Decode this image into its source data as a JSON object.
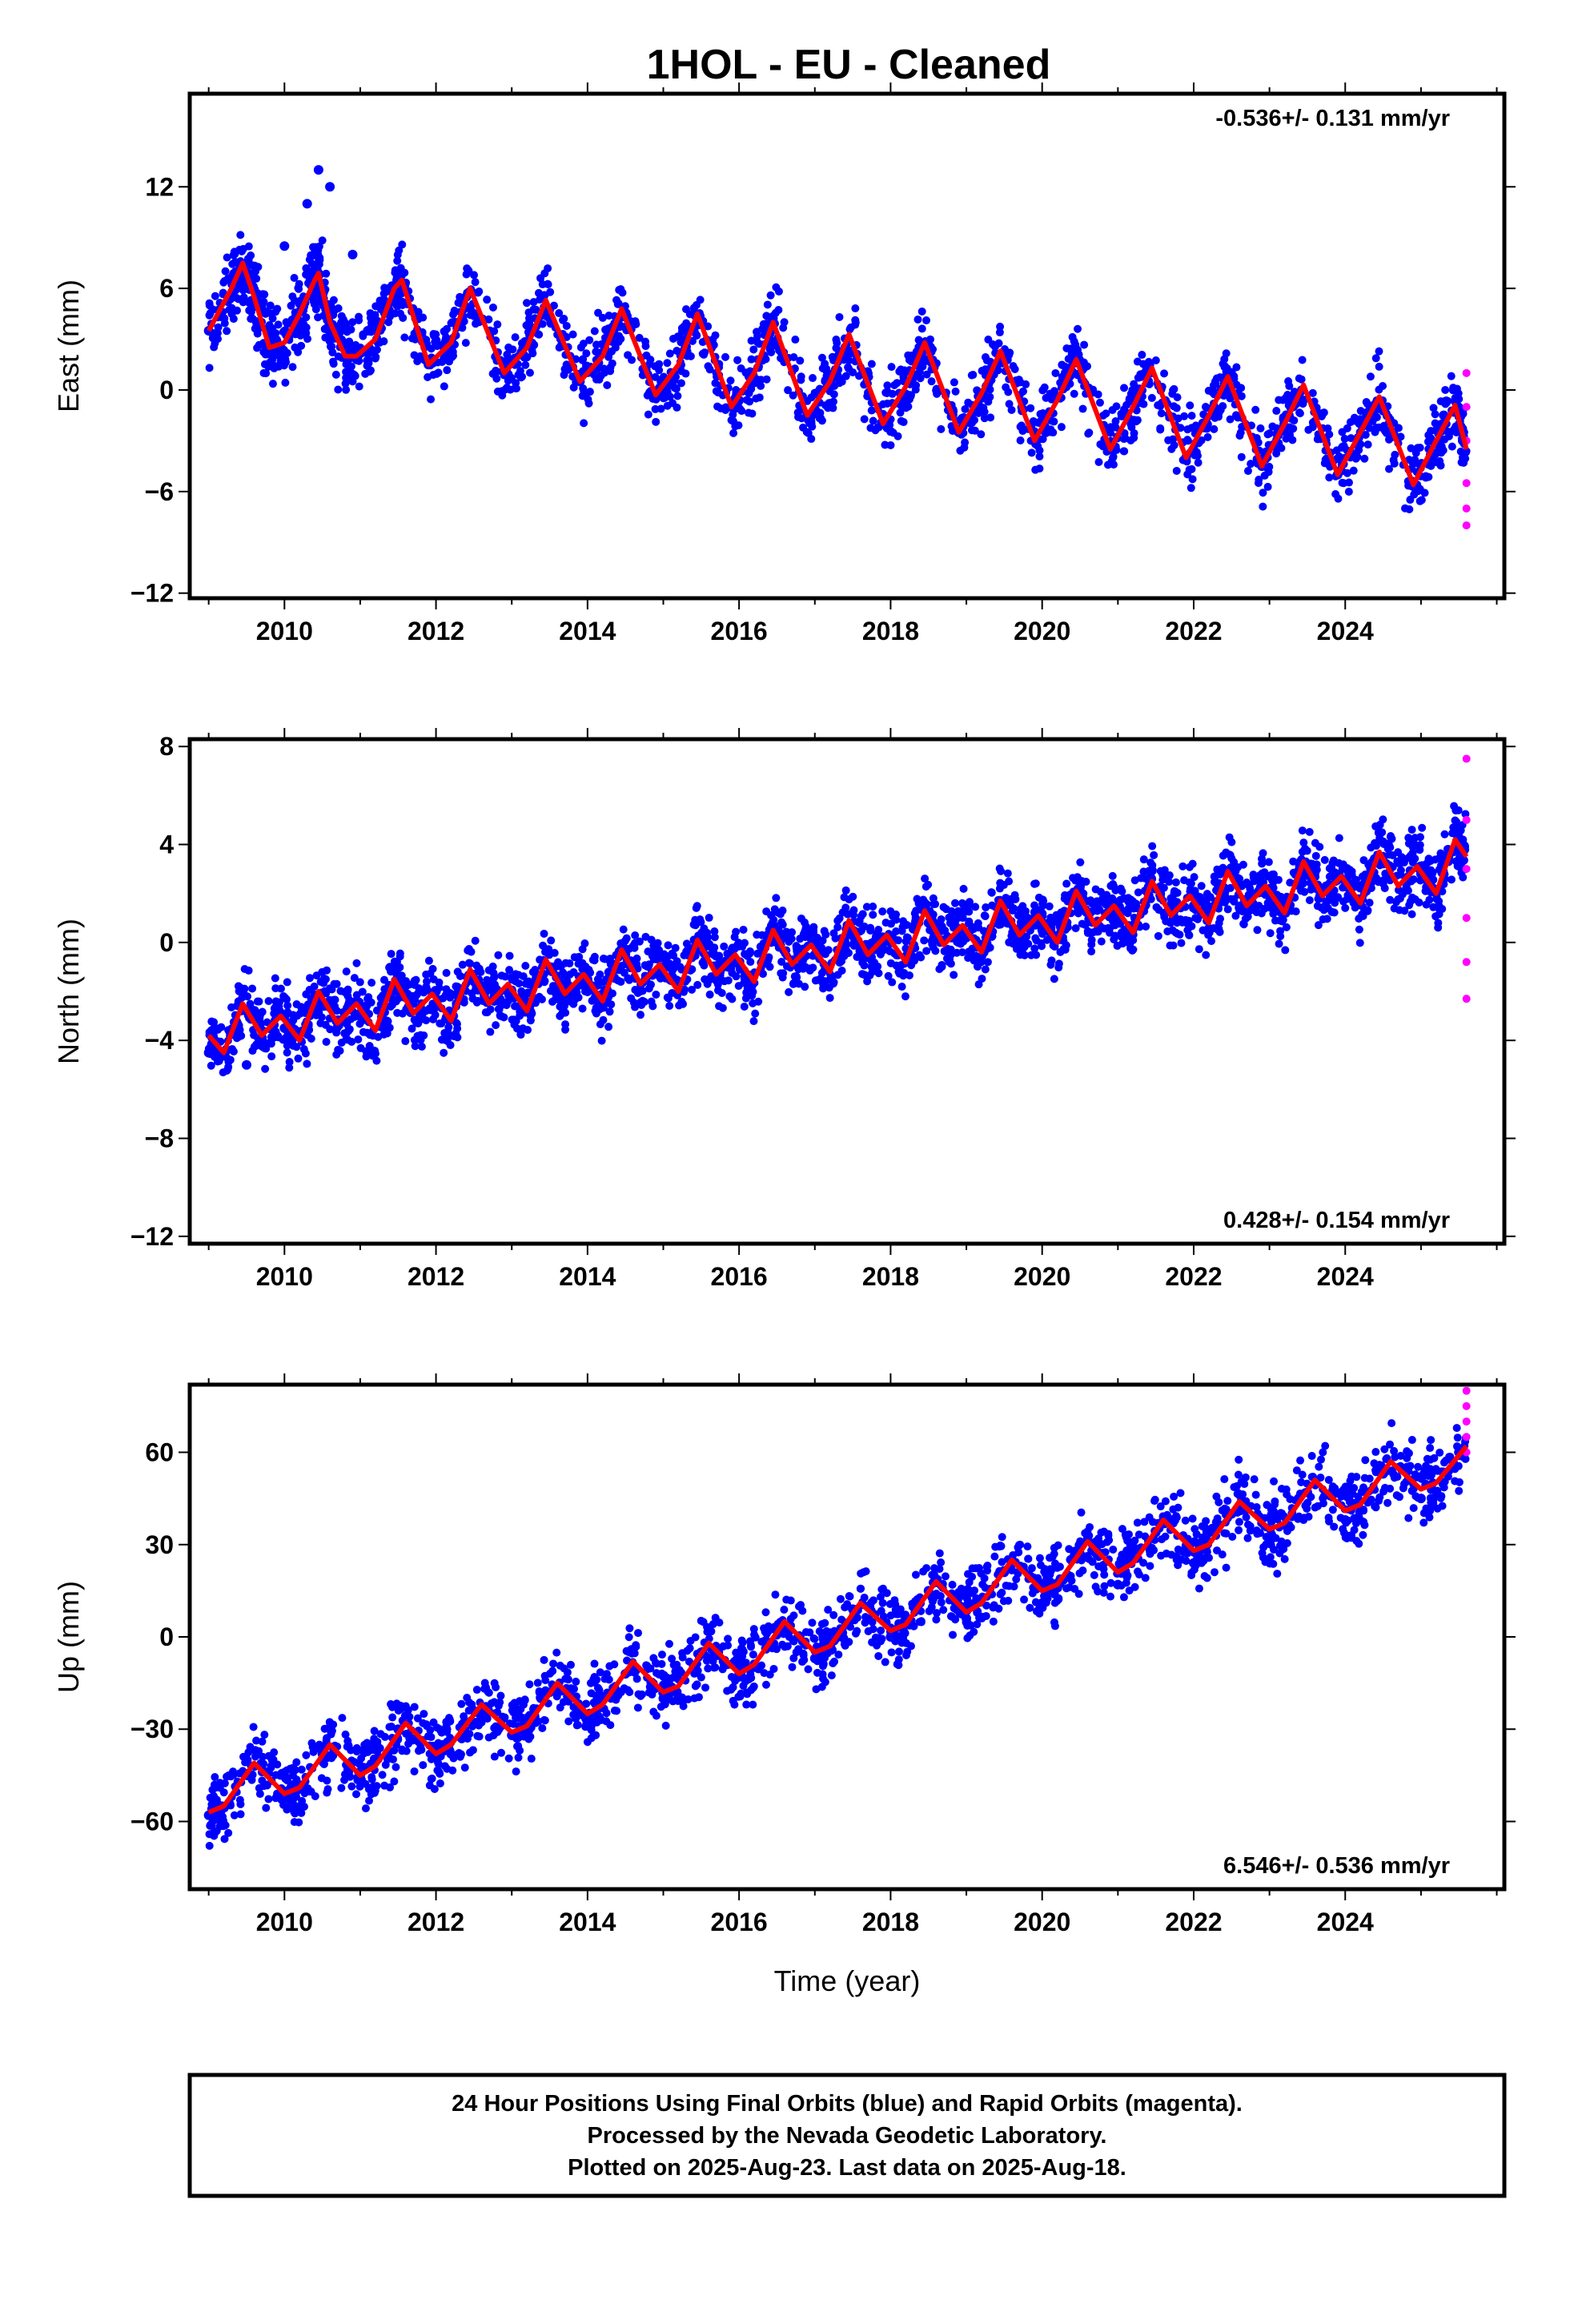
{
  "title": "1HOL  - EU - Cleaned",
  "footer": {
    "line1": "24 Hour Positions Using Final Orbits (blue) and Rapid Orbits (magenta).",
    "line2": "Processed by the Nevada Geodetic Laboratory.",
    "line3": "Plotted on 2025-Aug-23. Last data on 2025-Aug-18."
  },
  "colors": {
    "final_orbits": "#0000ff",
    "rapid_orbits": "#ff00ff",
    "model_fit": "#ff0000"
  },
  "chart_data": [
    {
      "type": "scatter",
      "ylabel": "East (mm)",
      "xlabel": "",
      "rate_label": "-0.536+/- 0.131 mm/yr",
      "rate_position": "top-right",
      "xlim": [
        2008.75,
        2026.1
      ],
      "ylim": [
        -12.3,
        17.5
      ],
      "yticks": [
        12,
        6,
        0,
        -6,
        -12
      ],
      "xticks": [
        2010,
        2012,
        2014,
        2016,
        2018,
        2020,
        2022,
        2024
      ],
      "series": [
        {
          "name": "Final Orbits",
          "x": [
            2009.0,
            2009.4,
            2009.8,
            2010.0,
            2010.3,
            2010.45,
            2010.6,
            2010.9,
            2011.1,
            2011.4,
            2011.9,
            2012.4,
            2012.9,
            2013.4,
            2013.9,
            2014.4,
            2014.9,
            2015.4,
            2015.9,
            2016.4,
            2016.9,
            2017.4,
            2017.9,
            2018.4,
            2018.9,
            2019.4,
            2019.9,
            2020.4,
            2020.9,
            2021.4,
            2021.9,
            2022.4,
            2022.9,
            2023.4,
            2023.9,
            2024.4,
            2024.9,
            2025.3,
            2025.55
          ],
          "y": [
            3.5,
            7.5,
            2.5,
            8.5,
            11.0,
            13.0,
            12.0,
            8.0,
            3.5,
            6.0,
            1.5,
            5.5,
            1.0,
            4.5,
            0.5,
            4.0,
            -0.5,
            3.5,
            -1.0,
            3.0,
            -1.5,
            2.5,
            -2.0,
            2.0,
            -2.5,
            1.5,
            -3.0,
            1.0,
            -3.5,
            0.5,
            -4.0,
            0.0,
            -4.5,
            -0.5,
            -5.0,
            -1.0,
            -5.5,
            -1.5,
            -3.0
          ]
        },
        {
          "name": "Rapid Orbits",
          "x": [
            2025.6,
            2025.6,
            2025.6,
            2025.6,
            2025.6,
            2025.6
          ],
          "y": [
            1.0,
            -1.0,
            -3.0,
            -5.5,
            -7.0,
            -8.0
          ]
        }
      ],
      "fit": {
        "name": "Model",
        "x": [
          2009.0,
          2009.3,
          2009.45,
          2009.6,
          2009.8,
          2010.0,
          2010.2,
          2010.4,
          2010.45,
          2010.6,
          2010.8,
          2010.95,
          2011.2,
          2011.45,
          2011.55,
          2011.9,
          2012.2,
          2012.45,
          2012.9,
          2013.2,
          2013.45,
          2013.9,
          2014.2,
          2014.45,
          2014.9,
          2015.2,
          2015.45,
          2015.9,
          2016.2,
          2016.45,
          2016.9,
          2017.2,
          2017.45,
          2017.9,
          2018.2,
          2018.45,
          2018.9,
          2019.2,
          2019.45,
          2019.9,
          2020.2,
          2020.45,
          2020.9,
          2021.2,
          2021.45,
          2021.9,
          2022.2,
          2022.45,
          2022.9,
          2023.2,
          2023.45,
          2023.9,
          2024.2,
          2024.45,
          2024.9,
          2025.2,
          2025.45,
          2025.6
        ],
        "y": [
          3.5,
          6.0,
          7.5,
          5.5,
          2.5,
          2.8,
          4.5,
          6.5,
          6.9,
          4.0,
          2.0,
          2.0,
          3.0,
          6.0,
          6.5,
          1.5,
          2.8,
          6.0,
          1.0,
          2.5,
          5.3,
          0.5,
          2.0,
          4.8,
          -0.3,
          1.5,
          4.5,
          -1.0,
          1.0,
          4.0,
          -1.5,
          0.5,
          3.3,
          -2.0,
          0.2,
          2.8,
          -2.5,
          -0.2,
          2.3,
          -3.0,
          -0.6,
          1.8,
          -3.5,
          -1.0,
          1.3,
          -4.0,
          -1.5,
          0.8,
          -4.5,
          -2.0,
          0.3,
          -5.0,
          -2.5,
          -0.4,
          -5.6,
          -3.0,
          -0.9,
          -3.5
        ]
      }
    },
    {
      "type": "scatter",
      "ylabel": "North (mm)",
      "xlabel": "",
      "rate_label": "0.428+/- 0.154 mm/yr",
      "rate_position": "bottom-right",
      "xlim": [
        2008.75,
        2026.1
      ],
      "ylim": [
        -12.3,
        8.3
      ],
      "yticks": [
        8,
        4,
        0,
        -4,
        -8,
        -12
      ],
      "xticks": [
        2010,
        2012,
        2014,
        2016,
        2018,
        2020,
        2022,
        2024
      ],
      "series": [
        {
          "name": "Final Orbits",
          "x": [
            2009.0,
            2009.5,
            2010.0,
            2010.5,
            2011.0,
            2011.5,
            2012.0,
            2012.5,
            2013.0,
            2013.5,
            2014.0,
            2014.5,
            2015.0,
            2015.5,
            2016.0,
            2016.5,
            2017.0,
            2017.5,
            2018.0,
            2018.5,
            2019.0,
            2019.5,
            2020.0,
            2020.5,
            2021.0,
            2021.5,
            2022.0,
            2022.5,
            2023.0,
            2023.5,
            2024.0,
            2024.5,
            2025.0,
            2025.5
          ],
          "y": [
            -4.5,
            -5.0,
            -3.5,
            -2.5,
            -3.0,
            -2.0,
            -2.0,
            -1.5,
            -2.0,
            -1.0,
            -1.5,
            -0.5,
            -1.0,
            0.0,
            -0.8,
            0.2,
            -0.5,
            0.5,
            0.0,
            0.8,
            0.2,
            1.0,
            0.5,
            1.8,
            1.2,
            2.2,
            1.5,
            2.8,
            2.0,
            3.0,
            2.5,
            3.5,
            2.8,
            3.8
          ]
        },
        {
          "name": "Rapid Orbits",
          "x": [
            2025.6,
            2025.6,
            2025.6,
            2025.6,
            2025.6,
            2025.6
          ],
          "y": [
            7.5,
            5.0,
            3.0,
            1.0,
            -0.8,
            -2.3
          ]
        }
      ],
      "fit": {
        "name": "Model",
        "x": [
          2009.0,
          2009.2,
          2009.45,
          2009.7,
          2009.95,
          2010.2,
          2010.45,
          2010.7,
          2010.95,
          2011.2,
          2011.45,
          2011.7,
          2011.95,
          2012.2,
          2012.45,
          2012.7,
          2012.95,
          2013.2,
          2013.45,
          2013.7,
          2013.95,
          2014.2,
          2014.45,
          2014.7,
          2014.95,
          2015.2,
          2015.45,
          2015.7,
          2015.95,
          2016.2,
          2016.45,
          2016.7,
          2016.95,
          2017.2,
          2017.45,
          2017.7,
          2017.95,
          2018.2,
          2018.45,
          2018.7,
          2018.95,
          2019.2,
          2019.45,
          2019.7,
          2019.95,
          2020.2,
          2020.45,
          2020.7,
          2020.95,
          2021.2,
          2021.45,
          2021.7,
          2021.95,
          2022.2,
          2022.45,
          2022.7,
          2022.95,
          2023.2,
          2023.45,
          2023.7,
          2023.95,
          2024.2,
          2024.45,
          2024.7,
          2024.95,
          2025.2,
          2025.45,
          2025.6
        ],
        "y": [
          -3.8,
          -4.5,
          -2.5,
          -3.8,
          -3.0,
          -4.0,
          -2.0,
          -3.3,
          -2.5,
          -3.6,
          -1.5,
          -2.9,
          -2.1,
          -3.2,
          -1.1,
          -2.5,
          -1.7,
          -2.8,
          -0.7,
          -2.1,
          -1.3,
          -2.4,
          -0.3,
          -1.7,
          -0.9,
          -2.0,
          0.1,
          -1.3,
          -0.5,
          -1.6,
          0.5,
          -0.9,
          -0.1,
          -1.2,
          0.9,
          -0.5,
          0.3,
          -0.8,
          1.3,
          -0.1,
          0.7,
          -0.4,
          1.7,
          0.3,
          1.1,
          0.0,
          2.1,
          0.7,
          1.5,
          0.4,
          2.5,
          1.1,
          1.9,
          0.8,
          2.9,
          1.5,
          2.3,
          1.2,
          3.3,
          1.9,
          2.7,
          1.6,
          3.7,
          2.3,
          3.1,
          2.0,
          4.2,
          3.5
        ]
      }
    },
    {
      "type": "scatter",
      "ylabel": "Up (mm)",
      "xlabel": "Time (year)",
      "rate_label": "6.546+/- 0.536 mm/yr",
      "rate_position": "bottom-right",
      "xlim": [
        2008.75,
        2026.1
      ],
      "ylim": [
        -82,
        82
      ],
      "yticks": [
        60,
        30,
        0,
        -30,
        -60
      ],
      "xticks": [
        2010,
        2012,
        2014,
        2016,
        2018,
        2020,
        2022,
        2024
      ],
      "series": [
        {
          "name": "Final Orbits",
          "x": [
            2009.0,
            2009.5,
            2010.0,
            2010.5,
            2011.0,
            2011.5,
            2012.0,
            2012.5,
            2013.0,
            2013.5,
            2014.0,
            2014.5,
            2015.0,
            2015.5,
            2016.0,
            2016.5,
            2017.0,
            2017.5,
            2018.0,
            2018.5,
            2019.0,
            2019.5,
            2020.0,
            2020.5,
            2021.0,
            2021.5,
            2022.0,
            2022.5,
            2023.0,
            2023.5,
            2024.0,
            2024.5,
            2025.0,
            2025.5
          ],
          "y": [
            -58,
            -45,
            -52,
            -38,
            -45,
            -30,
            -38,
            -24,
            -32,
            -18,
            -26,
            -12,
            -20,
            -5,
            -13,
            2,
            -7,
            9,
            0,
            15,
            6,
            21,
            11,
            27,
            17,
            34,
            24,
            40,
            31,
            47,
            38,
            53,
            45,
            60
          ]
        },
        {
          "name": "Rapid Orbits",
          "x": [
            2025.6,
            2025.6,
            2025.6,
            2025.6,
            2025.6
          ],
          "y": [
            80,
            75,
            70,
            65,
            60
          ]
        }
      ],
      "fit": {
        "name": "Model",
        "x": [
          2009.0,
          2009.2,
          2009.6,
          2010.0,
          2010.2,
          2010.6,
          2011.0,
          2011.2,
          2011.6,
          2012.0,
          2012.2,
          2012.6,
          2013.0,
          2013.2,
          2013.6,
          2014.0,
          2014.2,
          2014.6,
          2015.0,
          2015.2,
          2015.6,
          2016.0,
          2016.2,
          2016.6,
          2017.0,
          2017.2,
          2017.6,
          2018.0,
          2018.2,
          2018.6,
          2019.0,
          2019.2,
          2019.6,
          2020.0,
          2020.2,
          2020.6,
          2021.0,
          2021.2,
          2021.6,
          2022.0,
          2022.2,
          2022.6,
          2023.0,
          2023.2,
          2023.6,
          2024.0,
          2024.2,
          2024.6,
          2025.0,
          2025.2,
          2025.6
        ],
        "y": [
          -57,
          -55,
          -41,
          -51,
          -49,
          -35,
          -45,
          -42,
          -28,
          -38,
          -35,
          -22,
          -31,
          -29,
          -15,
          -25,
          -22,
          -8,
          -18,
          -16,
          -2,
          -12,
          -9,
          5,
          -5,
          -3,
          11,
          2,
          4,
          18,
          8,
          11,
          25,
          15,
          17,
          31,
          21,
          24,
          38,
          28,
          30,
          44,
          35,
          37,
          51,
          41,
          43,
          57,
          48,
          50,
          62
        ]
      }
    }
  ]
}
